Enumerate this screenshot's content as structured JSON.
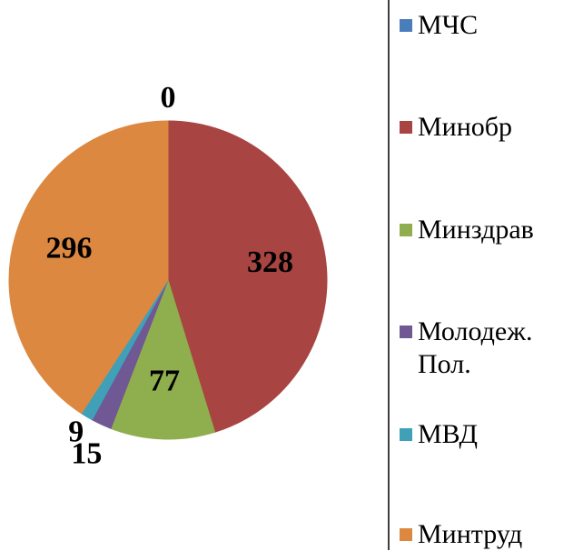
{
  "chart_data": {
    "type": "pie",
    "categories": [
      "МЧС",
      "Минобр",
      "Минздрав",
      "Молодеж. Пол.",
      "МВД",
      "Минтруд"
    ],
    "values": [
      0,
      328,
      77,
      15,
      9,
      296
    ],
    "colors": [
      "#4a7ebb",
      "#a84442",
      "#8fae4e",
      "#6f5893",
      "#3fa0b8",
      "#dc8840"
    ]
  }
}
